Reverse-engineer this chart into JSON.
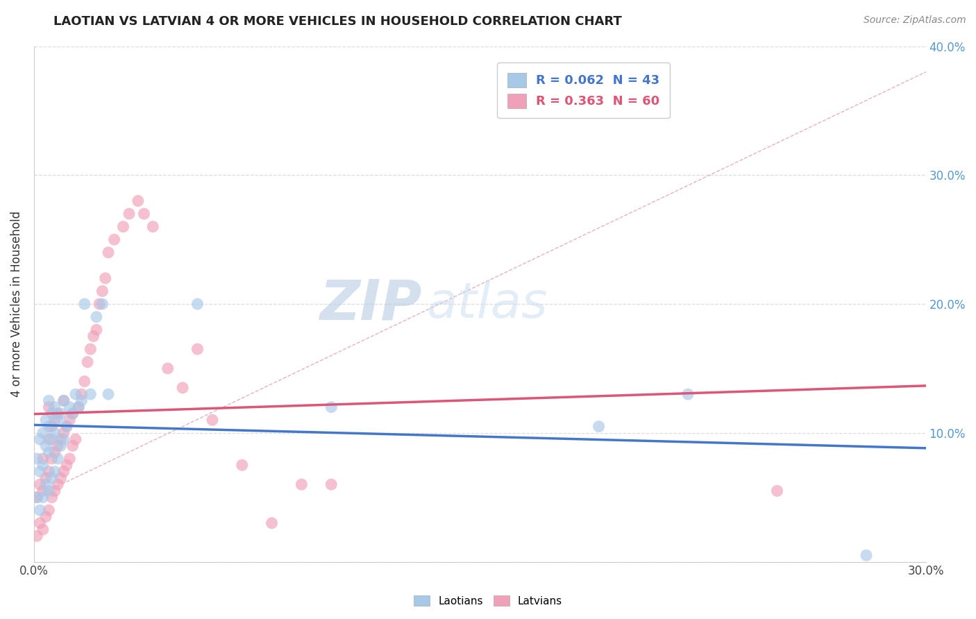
{
  "title": "LAOTIAN VS LATVIAN 4 OR MORE VEHICLES IN HOUSEHOLD CORRELATION CHART",
  "source": "Source: ZipAtlas.com",
  "ylabel": "4 or more Vehicles in Household",
  "xlim": [
    0.0,
    0.3
  ],
  "ylim": [
    0.0,
    0.4
  ],
  "xticks": [
    0.0,
    0.05,
    0.1,
    0.15,
    0.2,
    0.25,
    0.3
  ],
  "yticks": [
    0.0,
    0.1,
    0.2,
    0.3,
    0.4
  ],
  "laotian_R": 0.062,
  "laotian_N": 43,
  "latvian_R": 0.363,
  "latvian_N": 60,
  "laotian_color": "#a8c8e8",
  "latvian_color": "#f0a0b8",
  "laotian_line_color": "#4477cc",
  "latvian_line_color": "#dd5577",
  "watermark_color": "#ccddf0",
  "background_color": "#ffffff",
  "grid_color": "#dddddd",
  "tick_color": "#5599cc",
  "laotian_x": [
    0.001,
    0.001,
    0.002,
    0.002,
    0.002,
    0.003,
    0.003,
    0.003,
    0.004,
    0.004,
    0.004,
    0.005,
    0.005,
    0.005,
    0.005,
    0.006,
    0.006,
    0.006,
    0.007,
    0.007,
    0.007,
    0.008,
    0.008,
    0.009,
    0.009,
    0.01,
    0.01,
    0.011,
    0.012,
    0.013,
    0.014,
    0.015,
    0.016,
    0.017,
    0.019,
    0.021,
    0.023,
    0.025,
    0.055,
    0.1,
    0.19,
    0.22,
    0.28
  ],
  "laotian_y": [
    0.05,
    0.08,
    0.04,
    0.07,
    0.095,
    0.05,
    0.075,
    0.1,
    0.06,
    0.09,
    0.11,
    0.055,
    0.085,
    0.105,
    0.125,
    0.065,
    0.095,
    0.115,
    0.07,
    0.1,
    0.12,
    0.08,
    0.11,
    0.09,
    0.115,
    0.095,
    0.125,
    0.105,
    0.12,
    0.115,
    0.13,
    0.12,
    0.125,
    0.2,
    0.13,
    0.19,
    0.2,
    0.13,
    0.2,
    0.12,
    0.105,
    0.13,
    0.005
  ],
  "latvian_x": [
    0.001,
    0.001,
    0.002,
    0.002,
    0.003,
    0.003,
    0.003,
    0.004,
    0.004,
    0.005,
    0.005,
    0.005,
    0.005,
    0.006,
    0.006,
    0.006,
    0.007,
    0.007,
    0.007,
    0.008,
    0.008,
    0.008,
    0.009,
    0.009,
    0.01,
    0.01,
    0.01,
    0.011,
    0.011,
    0.012,
    0.012,
    0.013,
    0.013,
    0.014,
    0.015,
    0.016,
    0.017,
    0.018,
    0.019,
    0.02,
    0.021,
    0.022,
    0.023,
    0.024,
    0.025,
    0.027,
    0.03,
    0.032,
    0.035,
    0.037,
    0.04,
    0.045,
    0.05,
    0.055,
    0.06,
    0.07,
    0.08,
    0.09,
    0.1,
    0.25
  ],
  "latvian_y": [
    0.02,
    0.05,
    0.03,
    0.06,
    0.025,
    0.055,
    0.08,
    0.035,
    0.065,
    0.04,
    0.07,
    0.095,
    0.12,
    0.05,
    0.08,
    0.105,
    0.055,
    0.085,
    0.11,
    0.06,
    0.09,
    0.115,
    0.065,
    0.095,
    0.07,
    0.1,
    0.125,
    0.075,
    0.105,
    0.08,
    0.11,
    0.09,
    0.115,
    0.095,
    0.12,
    0.13,
    0.14,
    0.155,
    0.165,
    0.175,
    0.18,
    0.2,
    0.21,
    0.22,
    0.24,
    0.25,
    0.26,
    0.27,
    0.28,
    0.27,
    0.26,
    0.15,
    0.135,
    0.165,
    0.11,
    0.075,
    0.03,
    0.06,
    0.06,
    0.055
  ]
}
